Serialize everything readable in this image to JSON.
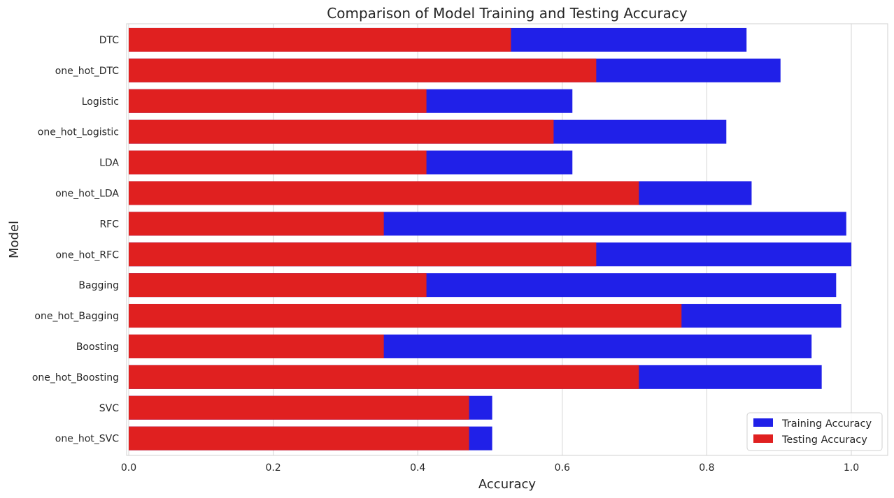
{
  "chart_data": {
    "type": "bar",
    "orientation": "horizontal",
    "title": "Comparison of Model Training and Testing Accuracy",
    "xlabel": "Accuracy",
    "ylabel": "Model",
    "xlim": [
      0,
      1.05
    ],
    "xticks": [
      0.0,
      0.2,
      0.4,
      0.6,
      0.8,
      1.0
    ],
    "xtick_labels": [
      "0.0",
      "0.2",
      "0.4",
      "0.6",
      "0.8",
      "1.0"
    ],
    "grid": true,
    "legend_position": "bottom-right",
    "categories": [
      "DTC",
      "one_hot_DTC",
      "Logistic",
      "one_hot_Logistic",
      "LDA",
      "one_hot_LDA",
      "RFC",
      "one_hot_RFC",
      "Bagging",
      "one_hot_Bagging",
      "Boosting",
      "one_hot_Boosting",
      "SVC",
      "one_hot_SVC"
    ],
    "series": [
      {
        "name": "Training Accuracy",
        "color": "#2020e8",
        "values": [
          0.855,
          0.902,
          0.614,
          0.827,
          0.614,
          0.862,
          0.993,
          1.0,
          0.979,
          0.986,
          0.945,
          0.959,
          0.503,
          0.503
        ]
      },
      {
        "name": "Testing Accuracy",
        "color": "#e02020",
        "values": [
          0.529,
          0.647,
          0.412,
          0.588,
          0.412,
          0.706,
          0.353,
          0.647,
          0.412,
          0.765,
          0.353,
          0.706,
          0.471,
          0.471
        ]
      }
    ]
  }
}
